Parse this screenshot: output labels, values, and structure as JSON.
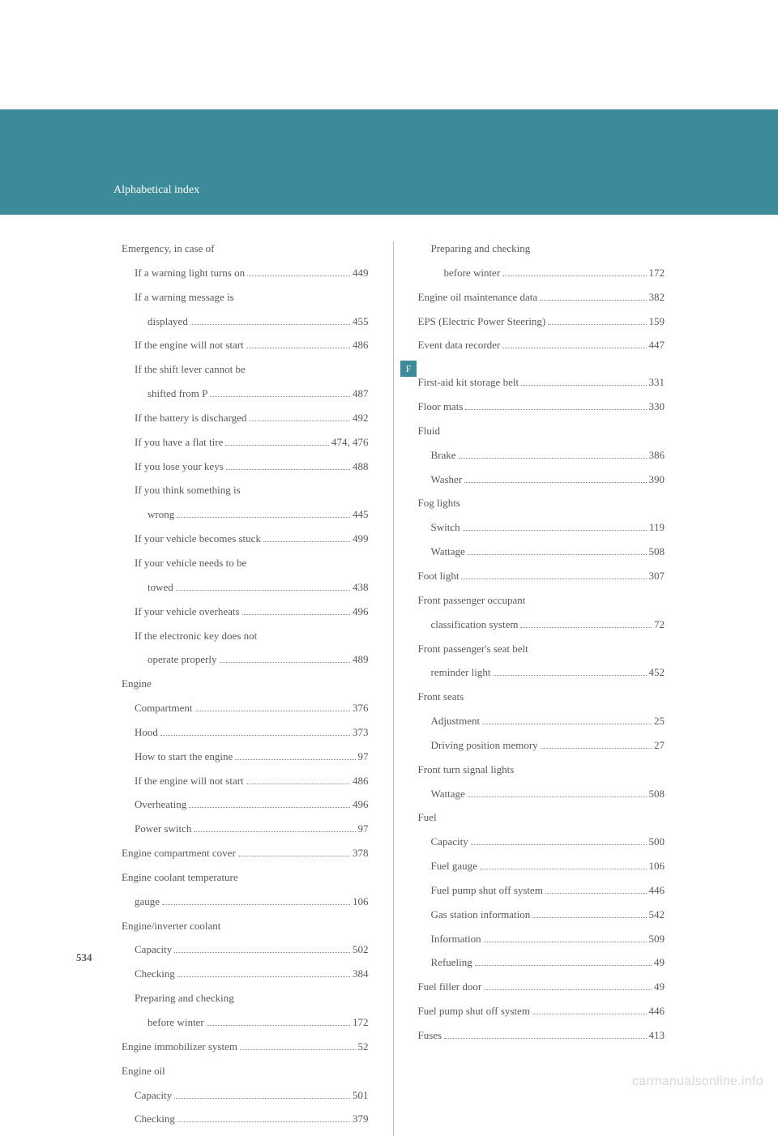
{
  "header": {
    "title": "Alphabetical index"
  },
  "page_number": "534",
  "watermark": "carmanualsonline.info",
  "letter_tab": "F",
  "colors": {
    "band": "#3b8b9a",
    "text": "#595959",
    "divider": "#c0c0c0",
    "watermark": "#d9d9d9",
    "background": "#ffffff"
  },
  "left_column": [
    {
      "label": "Emergency, in case of",
      "page": "",
      "indent": 0,
      "heading": true
    },
    {
      "label": "If a warning light turns on",
      "page": "449",
      "indent": 1
    },
    {
      "label": "If a warning message is",
      "page": "",
      "indent": 1,
      "nowrap_cont": true
    },
    {
      "label": "displayed",
      "page": "455",
      "indent": 2
    },
    {
      "label": "If the engine will not start",
      "page": "486",
      "indent": 1
    },
    {
      "label": "If the shift lever cannot be",
      "page": "",
      "indent": 1,
      "nowrap_cont": true
    },
    {
      "label": "shifted from P",
      "page": "487",
      "indent": 2
    },
    {
      "label": "If the battery is discharged",
      "page": "492",
      "indent": 1
    },
    {
      "label": "If you have a flat tire",
      "page": "474, 476",
      "indent": 1
    },
    {
      "label": "If you lose your keys",
      "page": "488",
      "indent": 1
    },
    {
      "label": "If you think something is",
      "page": "",
      "indent": 1,
      "nowrap_cont": true
    },
    {
      "label": "wrong",
      "page": "445",
      "indent": 2
    },
    {
      "label": "If your vehicle becomes stuck",
      "page": "499",
      "indent": 1
    },
    {
      "label": "If your vehicle needs to be",
      "page": "",
      "indent": 1,
      "nowrap_cont": true
    },
    {
      "label": "towed",
      "page": "438",
      "indent": 2
    },
    {
      "label": "If your vehicle overheats",
      "page": "496",
      "indent": 1
    },
    {
      "label": "If the electronic key does not",
      "page": "",
      "indent": 1,
      "nowrap_cont": true
    },
    {
      "label": "operate properly",
      "page": "489",
      "indent": 2
    },
    {
      "label": "Engine",
      "page": "",
      "indent": 0,
      "heading": true
    },
    {
      "label": "Compartment",
      "page": "376",
      "indent": 1
    },
    {
      "label": "Hood",
      "page": "373",
      "indent": 1
    },
    {
      "label": "How to start the engine",
      "page": "97",
      "indent": 1
    },
    {
      "label": "If the engine will not start",
      "page": "486",
      "indent": 1
    },
    {
      "label": "Overheating",
      "page": "496",
      "indent": 1
    },
    {
      "label": "Power switch",
      "page": "97",
      "indent": 1
    },
    {
      "label": "Engine compartment cover",
      "page": "378",
      "indent": 0
    },
    {
      "label": "Engine coolant temperature",
      "page": "",
      "indent": 0,
      "nowrap_cont": true
    },
    {
      "label": "gauge",
      "page": "106",
      "indent": 1
    },
    {
      "label": "Engine/inverter coolant",
      "page": "",
      "indent": 0,
      "heading": true
    },
    {
      "label": "Capacity",
      "page": "502",
      "indent": 1
    },
    {
      "label": "Checking",
      "page": "384",
      "indent": 1
    },
    {
      "label": "Preparing and checking",
      "page": "",
      "indent": 1,
      "nowrap_cont": true
    },
    {
      "label": "before winter",
      "page": "172",
      "indent": 2
    },
    {
      "label": "Engine immobilizer system",
      "page": "52",
      "indent": 0
    },
    {
      "label": "Engine oil",
      "page": "",
      "indent": 0,
      "heading": true
    },
    {
      "label": "Capacity",
      "page": "501",
      "indent": 1
    },
    {
      "label": "Checking",
      "page": "379",
      "indent": 1
    }
  ],
  "right_column": [
    {
      "label": "Preparing and checking",
      "page": "",
      "indent": 1,
      "nowrap_cont": true
    },
    {
      "label": "before winter",
      "page": "172",
      "indent": 2
    },
    {
      "label": "Engine oil maintenance data",
      "page": "382",
      "indent": 0
    },
    {
      "label": "EPS (Electric Power Steering)",
      "page": "159",
      "indent": 0
    },
    {
      "label": "Event data recorder",
      "page": "447",
      "indent": 0
    },
    {
      "spacer": true
    },
    {
      "label": "First-aid kit storage belt",
      "page": "331",
      "indent": 0
    },
    {
      "label": "Floor mats",
      "page": "330",
      "indent": 0
    },
    {
      "label": "Fluid",
      "page": "",
      "indent": 0,
      "heading": true
    },
    {
      "label": "Brake",
      "page": "386",
      "indent": 1
    },
    {
      "label": "Washer",
      "page": "390",
      "indent": 1
    },
    {
      "label": "Fog lights",
      "page": "",
      "indent": 0,
      "heading": true
    },
    {
      "label": "Switch",
      "page": "119",
      "indent": 1
    },
    {
      "label": "Wattage",
      "page": "508",
      "indent": 1
    },
    {
      "label": "Foot light",
      "page": "307",
      "indent": 0
    },
    {
      "label": "Front passenger occupant",
      "page": "",
      "indent": 0,
      "nowrap_cont": true
    },
    {
      "label": "classification system",
      "page": "72",
      "indent": 1
    },
    {
      "label": "Front passenger's seat belt",
      "page": "",
      "indent": 0,
      "nowrap_cont": true
    },
    {
      "label": "reminder light",
      "page": "452",
      "indent": 1
    },
    {
      "label": "Front seats",
      "page": "",
      "indent": 0,
      "heading": true
    },
    {
      "label": "Adjustment",
      "page": "25",
      "indent": 1
    },
    {
      "label": "Driving position memory",
      "page": "27",
      "indent": 1
    },
    {
      "label": "Front turn signal lights",
      "page": "",
      "indent": 0,
      "heading": true
    },
    {
      "label": "Wattage",
      "page": "508",
      "indent": 1
    },
    {
      "label": "Fuel",
      "page": "",
      "indent": 0,
      "heading": true
    },
    {
      "label": "Capacity",
      "page": "500",
      "indent": 1
    },
    {
      "label": "Fuel gauge",
      "page": "106",
      "indent": 1
    },
    {
      "label": "Fuel pump shut off system",
      "page": "446",
      "indent": 1
    },
    {
      "label": "Gas station information",
      "page": "542",
      "indent": 1
    },
    {
      "label": "Information",
      "page": "509",
      "indent": 1
    },
    {
      "label": "Refueling",
      "page": "49",
      "indent": 1
    },
    {
      "label": "Fuel filler door",
      "page": "49",
      "indent": 0
    },
    {
      "label": "Fuel pump shut off system",
      "page": "446",
      "indent": 0
    },
    {
      "label": "Fuses",
      "page": "413",
      "indent": 0
    }
  ]
}
